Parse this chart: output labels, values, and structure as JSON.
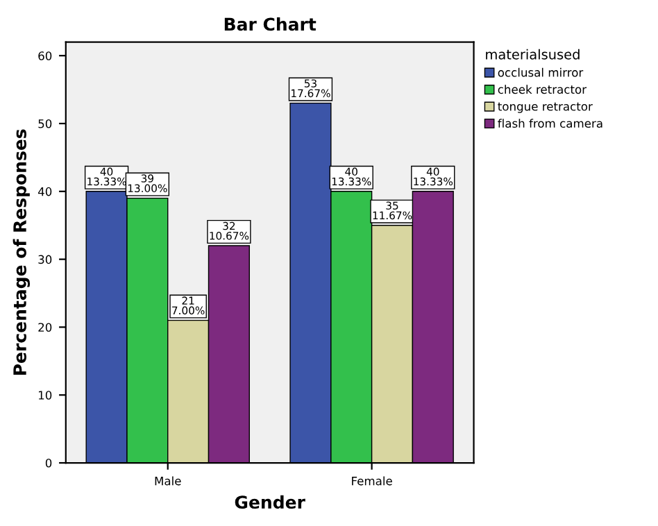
{
  "chart_data": {
    "type": "bar",
    "title": "Bar Chart",
    "xlabel": "Gender",
    "ylabel": "Percentage of Responses",
    "legend_title": "materialsused",
    "legend": "right",
    "categories": [
      "Male",
      "Female"
    ],
    "series": [
      {
        "name": "occlusal mirror",
        "color": "#3c55a8",
        "values": [
          40,
          53
        ],
        "value_labels": [
          "40\n13.33%",
          "53\n17.67%"
        ]
      },
      {
        "name": "cheek retractor",
        "color": "#33c04c",
        "values": [
          39,
          40
        ],
        "value_labels": [
          "39\n13.00%",
          "40\n13.33%"
        ]
      },
      {
        "name": "tongue retractor",
        "color": "#d8d6a0",
        "values": [
          21,
          35
        ],
        "value_labels": [
          "21\n7.00%",
          "35\n11.67%"
        ]
      },
      {
        "name": "flash from camera",
        "color": "#7d2a7f",
        "values": [
          32,
          40
        ],
        "value_labels": [
          "32\n10.67%",
          "40\n13.33%"
        ]
      }
    ],
    "ylim": [
      0,
      62
    ],
    "yticks": [
      0,
      10,
      20,
      30,
      40,
      50,
      60
    ],
    "grid": false
  }
}
